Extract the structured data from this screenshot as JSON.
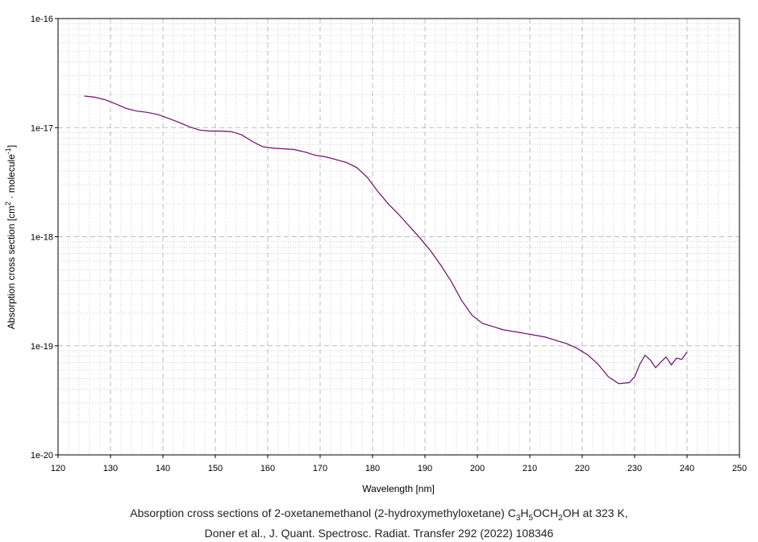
{
  "chart_data": {
    "type": "line",
    "title": "",
    "xlabel": "Wavelength [nm]",
    "ylabel": {
      "base": "Absorption cross section [cm",
      "sup1": "2",
      "mid": " · molecule",
      "sup2": "-1",
      "end": "]"
    },
    "xlim": [
      120,
      250
    ],
    "ylim": [
      1e-20,
      1e-16
    ],
    "yscale": "log",
    "grid": true,
    "x_ticks": [
      "120",
      "130",
      "140",
      "150",
      "160",
      "170",
      "180",
      "190",
      "200",
      "210",
      "220",
      "230",
      "240",
      "250"
    ],
    "y_ticks": [
      "1e-20",
      "1e-19",
      "1e-18",
      "1e-17",
      "1e-16"
    ],
    "line_color": "#6b0f6b",
    "series": [
      {
        "x": [
          125,
          127,
          129,
          131,
          133,
          135,
          137,
          139,
          141,
          143,
          145,
          147,
          149,
          151,
          153,
          155,
          157,
          159,
          161,
          163,
          165,
          167,
          169,
          171,
          173,
          175,
          177,
          179,
          181,
          183,
          185,
          187,
          189,
          191,
          193,
          195,
          197,
          199,
          201,
          203,
          205,
          207,
          209,
          211,
          213,
          215,
          217,
          219,
          221,
          223,
          225,
          227,
          229,
          230,
          231,
          232,
          233,
          234,
          235,
          236,
          237,
          238,
          239,
          240
        ],
        "y": [
          1.95e-17,
          1.9e-17,
          1.8e-17,
          1.65e-17,
          1.5e-17,
          1.42e-17,
          1.38e-17,
          1.32e-17,
          1.22e-17,
          1.12e-17,
          1.02e-17,
          9.5e-18,
          9.3e-18,
          9.3e-18,
          9.2e-18,
          8.6e-18,
          7.5e-18,
          6.7e-18,
          6.5e-18,
          6.4e-18,
          6.3e-18,
          6e-18,
          5.6e-18,
          5.4e-18,
          5.1e-18,
          4.8e-18,
          4.3e-18,
          3.5e-18,
          2.6e-18,
          2e-18,
          1.6e-18,
          1.25e-18,
          9.8e-19,
          7.5e-19,
          5.5e-19,
          3.9e-19,
          2.6e-19,
          1.9e-19,
          1.6e-19,
          1.5e-19,
          1.4e-19,
          1.35e-19,
          1.3e-19,
          1.25e-19,
          1.2e-19,
          1.12e-19,
          1.05e-19,
          9.5e-20,
          8.3e-20,
          6.8e-20,
          5.2e-20,
          4.5e-20,
          4.6e-20,
          5.2e-20,
          6.8e-20,
          8.2e-20,
          7.4e-20,
          6.3e-20,
          7.1e-20,
          7.9e-20,
          6.7e-20,
          7.7e-20,
          7.5e-20,
          8.8e-20
        ]
      }
    ]
  },
  "caption": {
    "line1_pre": "Absorption cross sections of 2-oxetanemethanol (2-hydroxymethyloxetane) C",
    "sub1": "3",
    "mid1": "H",
    "sub2": "5",
    "mid2": "OCH",
    "sub3": "2",
    "line1_post": "OH at 323 K,",
    "line2": "Doner et al., J. Quant. Spectrosc. Radiat. Transfer 292 (2022) 108346"
  }
}
